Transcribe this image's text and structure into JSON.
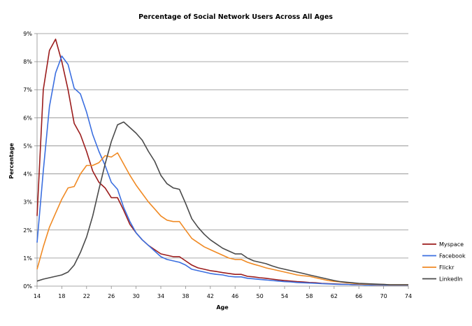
{
  "chart_data": {
    "type": "line",
    "title": "Percentage of Social Network Users Across All Ages",
    "xlabel": "Age",
    "ylabel": "Percentage",
    "xlim": [
      14,
      74
    ],
    "ylim": [
      0,
      9
    ],
    "x_ticks": [
      14,
      18,
      22,
      26,
      30,
      34,
      38,
      42,
      46,
      50,
      54,
      58,
      62,
      66,
      70,
      74
    ],
    "y_ticks": [
      "0%",
      "1%",
      "2%",
      "3%",
      "4%",
      "5%",
      "6%",
      "7%",
      "8%",
      "9%"
    ],
    "y_tick_values": [
      0,
      1,
      2,
      3,
      4,
      5,
      6,
      7,
      8,
      9
    ],
    "grid": "horizontal",
    "legend_position": "right",
    "x": [
      14,
      15,
      16,
      17,
      18,
      19,
      20,
      21,
      22,
      23,
      24,
      25,
      26,
      27,
      28,
      29,
      30,
      31,
      32,
      33,
      34,
      35,
      36,
      37,
      38,
      39,
      40,
      41,
      42,
      43,
      44,
      45,
      46,
      47,
      48,
      49,
      50,
      51,
      52,
      53,
      54,
      55,
      56,
      57,
      58,
      59,
      60,
      61,
      62,
      63,
      64,
      65,
      66,
      67,
      68,
      69,
      70,
      71,
      72,
      73,
      74
    ],
    "series": [
      {
        "name": "Myspace",
        "color": "#9b1c1c",
        "values": [
          2.5,
          7.0,
          8.4,
          8.8,
          8.0,
          7.0,
          5.8,
          5.4,
          4.8,
          4.1,
          3.7,
          3.5,
          3.15,
          3.15,
          2.7,
          2.2,
          1.9,
          1.65,
          1.45,
          1.3,
          1.15,
          1.1,
          1.05,
          1.05,
          0.9,
          0.75,
          0.65,
          0.6,
          0.55,
          0.52,
          0.48,
          0.45,
          0.42,
          0.42,
          0.35,
          0.33,
          0.3,
          0.28,
          0.25,
          0.22,
          0.2,
          0.18,
          0.16,
          0.15,
          0.13,
          0.12,
          0.1,
          0.09,
          0.08,
          0.07,
          0.06,
          0.05,
          0.05,
          0.05,
          0.04,
          0.04,
          0.04,
          0.04,
          0.04,
          0.04,
          0.04
        ]
      },
      {
        "name": "Facebook",
        "color": "#3b6fe0",
        "values": [
          1.55,
          4.1,
          6.4,
          7.6,
          8.2,
          7.9,
          7.05,
          6.85,
          6.2,
          5.4,
          4.8,
          4.3,
          3.7,
          3.45,
          2.8,
          2.3,
          1.9,
          1.65,
          1.45,
          1.25,
          1.05,
          0.95,
          0.9,
          0.85,
          0.75,
          0.6,
          0.55,
          0.5,
          0.45,
          0.42,
          0.4,
          0.35,
          0.33,
          0.33,
          0.28,
          0.26,
          0.24,
          0.22,
          0.2,
          0.18,
          0.16,
          0.15,
          0.13,
          0.12,
          0.11,
          0.1,
          0.09,
          0.08,
          0.07,
          0.06,
          0.06,
          0.05,
          0.05,
          0.04,
          0.04,
          0.04,
          0.04,
          0.04,
          0.04,
          0.04,
          0.04
        ]
      },
      {
        "name": "Flickr",
        "color": "#f08a24",
        "values": [
          0.6,
          1.4,
          2.1,
          2.6,
          3.1,
          3.5,
          3.55,
          4.0,
          4.3,
          4.3,
          4.4,
          4.65,
          4.6,
          4.75,
          4.35,
          3.95,
          3.6,
          3.3,
          3.0,
          2.75,
          2.5,
          2.35,
          2.3,
          2.3,
          2.0,
          1.7,
          1.55,
          1.4,
          1.3,
          1.2,
          1.1,
          1.0,
          0.95,
          0.95,
          0.85,
          0.78,
          0.72,
          0.65,
          0.6,
          0.55,
          0.5,
          0.45,
          0.4,
          0.37,
          0.35,
          0.3,
          0.25,
          0.2,
          0.17,
          0.15,
          0.12,
          0.1,
          0.08,
          0.07,
          0.07,
          0.06,
          0.06,
          0.05,
          0.05,
          0.05,
          0.05
        ]
      },
      {
        "name": "LinkedIn",
        "color": "#4a4a4a",
        "values": [
          0.18,
          0.25,
          0.3,
          0.35,
          0.4,
          0.5,
          0.75,
          1.2,
          1.75,
          2.5,
          3.45,
          4.35,
          5.15,
          5.75,
          5.85,
          5.65,
          5.45,
          5.2,
          4.8,
          4.45,
          3.95,
          3.65,
          3.5,
          3.45,
          2.95,
          2.4,
          2.1,
          1.85,
          1.65,
          1.5,
          1.35,
          1.25,
          1.15,
          1.15,
          1.0,
          0.9,
          0.85,
          0.8,
          0.72,
          0.65,
          0.6,
          0.55,
          0.5,
          0.45,
          0.4,
          0.35,
          0.3,
          0.25,
          0.2,
          0.16,
          0.14,
          0.12,
          0.1,
          0.09,
          0.08,
          0.07,
          0.06,
          0.05,
          0.05,
          0.05,
          0.05
        ]
      }
    ]
  }
}
